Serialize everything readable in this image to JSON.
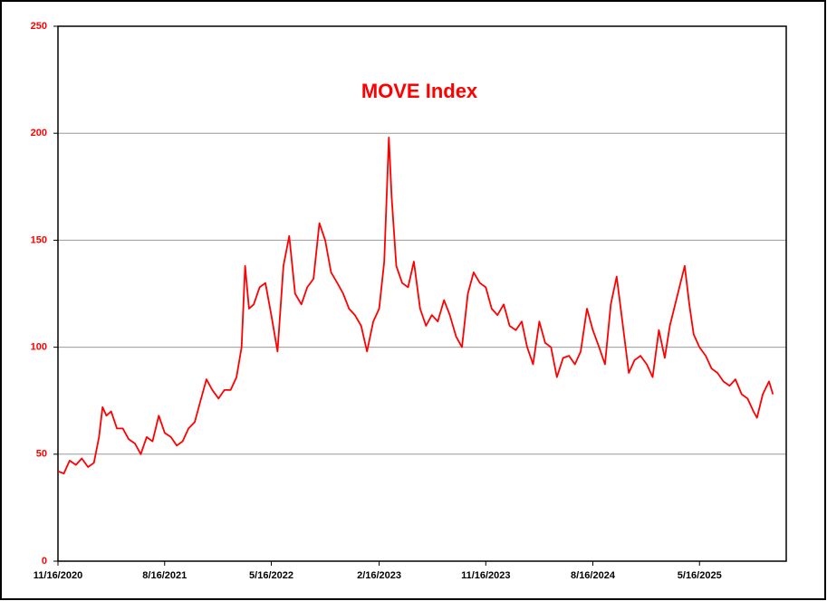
{
  "chart_data": {
    "type": "line",
    "title": "MOVE Index",
    "x": [
      "11/16/2020",
      "12/1/2020",
      "12/16/2020",
      "1/1/2021",
      "1/16/2021",
      "2/1/2021",
      "2/16/2021",
      "3/1/2021",
      "3/10/2021",
      "3/20/2021",
      "4/1/2021",
      "4/16/2021",
      "5/1/2021",
      "5/16/2021",
      "6/1/2021",
      "6/16/2021",
      "7/1/2021",
      "7/16/2021",
      "8/1/2021",
      "8/16/2021",
      "9/1/2021",
      "9/16/2021",
      "10/1/2021",
      "10/16/2021",
      "11/1/2021",
      "11/16/2021",
      "12/1/2021",
      "12/16/2021",
      "1/1/2022",
      "1/16/2022",
      "2/1/2022",
      "2/16/2022",
      "3/1/2022",
      "3/10/2022",
      "3/20/2022",
      "4/1/2022",
      "4/16/2022",
      "5/1/2022",
      "5/16/2022",
      "6/1/2022",
      "6/16/2022",
      "7/1/2022",
      "7/16/2022",
      "8/1/2022",
      "8/16/2022",
      "9/1/2022",
      "9/16/2022",
      "10/1/2022",
      "10/16/2022",
      "11/1/2022",
      "11/16/2022",
      "12/1/2022",
      "12/16/2022",
      "1/1/2023",
      "1/16/2023",
      "2/1/2023",
      "2/16/2023",
      "3/1/2023",
      "3/13/2023",
      "3/20/2023",
      "4/1/2023",
      "4/16/2023",
      "5/1/2023",
      "5/16/2023",
      "6/1/2023",
      "6/16/2023",
      "7/1/2023",
      "7/16/2023",
      "8/1/2023",
      "8/16/2023",
      "9/1/2023",
      "9/16/2023",
      "10/1/2023",
      "10/16/2023",
      "11/1/2023",
      "11/16/2023",
      "12/1/2023",
      "12/16/2023",
      "1/1/2024",
      "1/16/2024",
      "2/1/2024",
      "2/16/2024",
      "3/1/2024",
      "3/16/2024",
      "4/1/2024",
      "4/16/2024",
      "5/1/2024",
      "5/16/2024",
      "6/1/2024",
      "6/16/2024",
      "7/1/2024",
      "7/16/2024",
      "8/1/2024",
      "8/16/2024",
      "9/1/2024",
      "9/16/2024",
      "10/1/2024",
      "10/16/2024",
      "11/1/2024",
      "11/16/2024",
      "12/1/2024",
      "12/16/2024",
      "1/1/2025",
      "1/16/2025",
      "2/1/2025",
      "2/16/2025",
      "3/1/2025",
      "4/8/2025",
      "4/20/2025",
      "5/1/2025",
      "5/16/2025",
      "6/1/2025",
      "6/16/2025",
      "7/1/2025",
      "7/16/2025",
      "8/1/2025",
      "8/16/2025",
      "9/1/2025",
      "9/16/2025",
      "10/1/2025",
      "10/10/2025",
      "10/25/2025",
      "11/10/2025",
      "11/20/2025"
    ],
    "series": [
      {
        "name": "MOVE Index",
        "color": "#ff0000",
        "values": [
          42,
          41,
          47,
          45,
          48,
          44,
          46,
          58,
          72,
          68,
          70,
          62,
          62,
          57,
          55,
          50,
          58,
          56,
          68,
          60,
          58,
          54,
          56,
          62,
          65,
          75,
          85,
          80,
          76,
          80,
          80,
          86,
          100,
          138,
          118,
          120,
          128,
          130,
          115,
          98,
          138,
          152,
          125,
          120,
          128,
          132,
          158,
          150,
          135,
          130,
          125,
          118,
          115,
          110,
          98,
          112,
          118,
          140,
          198,
          170,
          138,
          130,
          128,
          140,
          118,
          110,
          115,
          112,
          122,
          115,
          105,
          100,
          125,
          135,
          130,
          128,
          118,
          115,
          120,
          110,
          108,
          112,
          100,
          92,
          112,
          102,
          100,
          86,
          95,
          96,
          92,
          98,
          118,
          108,
          100,
          92,
          120,
          133,
          110,
          88,
          94,
          96,
          92,
          86,
          108,
          95,
          110,
          138,
          120,
          106,
          100,
          96,
          90,
          88,
          84,
          82,
          85,
          78,
          76,
          70,
          67,
          78,
          84,
          78
        ]
      }
    ],
    "xlim": [
      "11/16/2020",
      "12/24/2025"
    ],
    "xticks": [
      "11/16/2020",
      "8/16/2021",
      "5/16/2022",
      "2/16/2023",
      "11/16/2023",
      "8/16/2024",
      "5/16/2025"
    ],
    "ylim": [
      0,
      250
    ],
    "yticks": [
      0,
      50,
      100,
      150,
      200,
      250
    ],
    "grid": true
  }
}
